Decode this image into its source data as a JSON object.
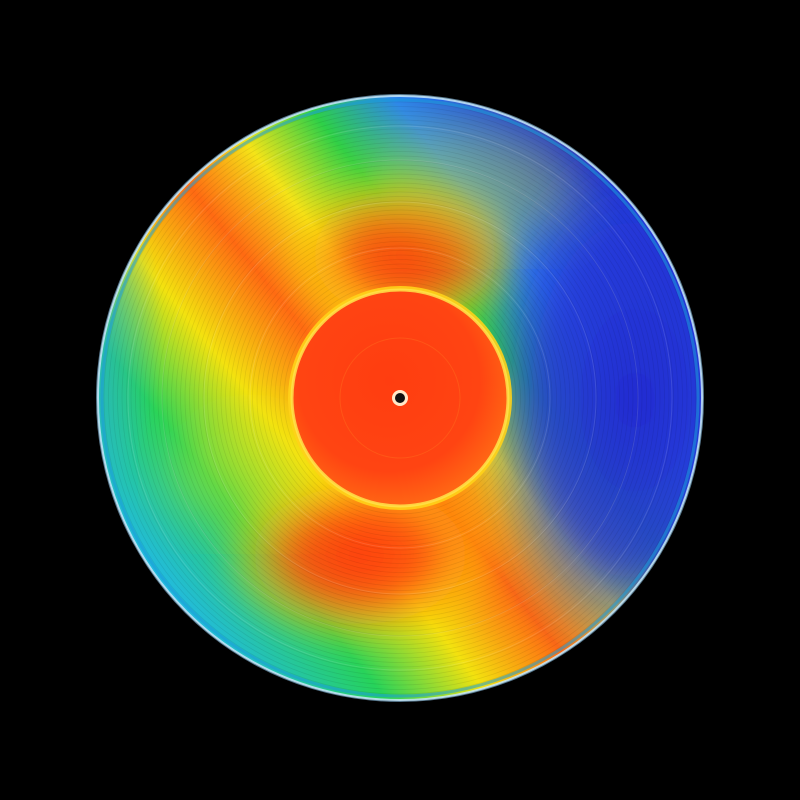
{
  "scene": {
    "subject": "vinyl-record",
    "background_color": "#000000",
    "palette": {
      "deep_blue": "#1c2fd6",
      "blue": "#2f6ff0",
      "cyan": "#2fb8e8",
      "green": "#22d64a",
      "yellow": "#f2e60c",
      "orange": "#ff7a12",
      "red": "#ff3a12",
      "rim_highlight": "#bfe8ff",
      "spindle_hole": "#111111"
    },
    "icons": [
      "vinyl-record-icon",
      "spindle-hole-icon"
    ]
  }
}
